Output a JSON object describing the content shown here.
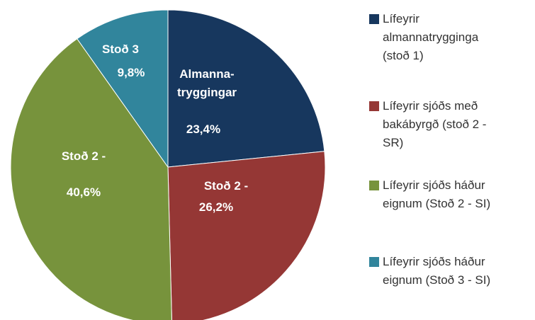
{
  "chart_data": {
    "type": "pie",
    "categories": [
      "Almanna-\ntryggingar",
      "Stoð 2 -",
      "Stoð 2 -",
      "Stoð 3"
    ],
    "values": [
      23.4,
      26.2,
      40.6,
      9.8
    ],
    "value_labels": [
      "23,4%",
      "26,2%",
      "40,6%",
      "9,8%"
    ],
    "colors": [
      "#17375e",
      "#953735",
      "#77933c",
      "#31859c"
    ],
    "legend": [
      "Lífeyrir\nalmannatrygginga\n(stoð 1)",
      "Lífeyrir sjóðs með\nbakábyrgð (stoð 2 -\nSR)",
      "Lífeyrir sjóðs háður\neignum (Stoð 2 - SI)",
      "Lífeyrir sjóðs háður\neignum (Stoð 3 - SI)"
    ],
    "legend_position": "right"
  }
}
